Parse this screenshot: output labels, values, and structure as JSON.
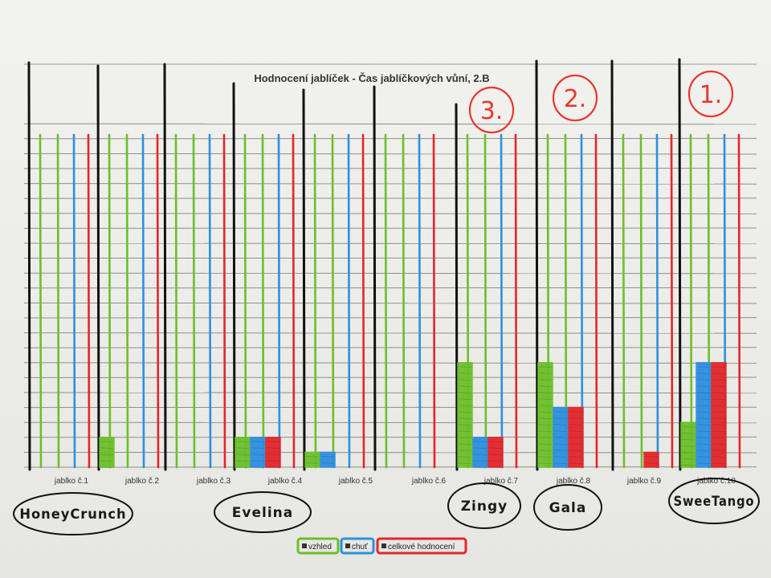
{
  "chart_data": {
    "type": "bar",
    "title": "Hodnocení jablíček - Čas jablíčkových vůní, 2.B",
    "categories": [
      "jablko č.1",
      "jablko č.2",
      "jablko č.3",
      "jablko č.4",
      "jablko č.5",
      "jablko č.6",
      "jablko č.7",
      "jablko č.8",
      "jablko č.9",
      "jablko č.10"
    ],
    "ylim": [
      0,
      23
    ],
    "grid": true,
    "legend_position": "bottom",
    "series": [
      {
        "name": "vzhled",
        "color": "#6cbf2a",
        "values": [
          0,
          2,
          0,
          2,
          1,
          0,
          7,
          7,
          0,
          3
        ]
      },
      {
        "name": "chuť",
        "color": "#2d8fe0",
        "values": [
          0,
          0,
          0,
          2,
          1,
          0,
          2,
          4,
          0,
          7
        ]
      },
      {
        "name": "celkové hodnocení",
        "color": "#e3262a",
        "values": [
          0,
          0,
          0,
          2,
          0,
          0,
          2,
          4,
          1,
          7
        ]
      }
    ],
    "annotations": {
      "names": [
        {
          "text": "HoneyCrunch",
          "category_index": 0
        },
        {
          "text": "Evelina",
          "category_index": 3
        },
        {
          "text": "Zingy",
          "category_index": 6
        },
        {
          "text": "Gala",
          "category_index": 7
        },
        {
          "text": "SweeTango",
          "category_index": 9
        }
      ],
      "ranks": [
        {
          "text": "3.",
          "category_index": 6
        },
        {
          "text": "2.",
          "category_index": 7
        },
        {
          "text": "1.",
          "category_index": 9
        }
      ]
    }
  }
}
